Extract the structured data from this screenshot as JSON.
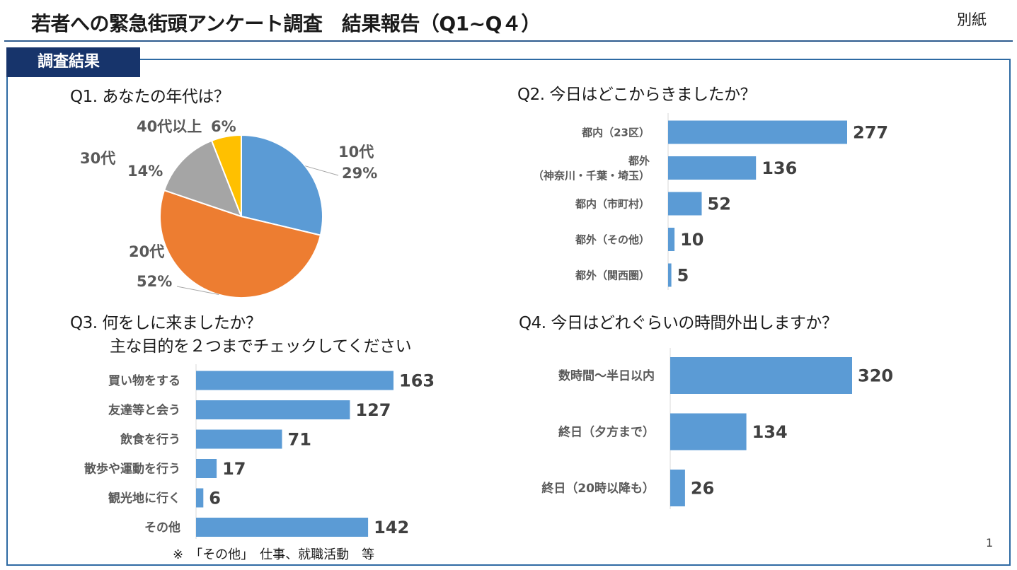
{
  "header": {
    "title": "若者への緊急街頭アンケート調査　結果報告（Q1~Q４）",
    "attachment_label": "別紙",
    "section_tag": "調査結果"
  },
  "footer": {
    "note": "※　「その他」　仕事、就職活動　等",
    "page_number": "1"
  },
  "colors": {
    "bar": "#5b9bd5",
    "pie_10s": "#5b9bd5",
    "pie_20s": "#ed7d31",
    "pie_30s": "#a5a5a5",
    "pie_40s": "#ffc000"
  },
  "chart_data": [
    {
      "id": "q1",
      "type": "pie",
      "title": "Q1. あなたの年代は？",
      "slices": [
        {
          "label": "10代",
          "value": 29,
          "value_label": "29%"
        },
        {
          "label": "20代",
          "value": 52,
          "value_label": "52%"
        },
        {
          "label": "30代",
          "value": 14,
          "value_label": "14%"
        },
        {
          "label": "40代以上",
          "value": 6,
          "value_label": "6%"
        }
      ]
    },
    {
      "id": "q2",
      "type": "bar",
      "orientation": "horizontal",
      "title": "Q2. 今日はどこからきましたか？",
      "categories": [
        "都内（23区）",
        "都外\n（神奈川・千葉・埼玉）",
        "都内（市町村）",
        "都外（その他）",
        "都外（関西圏）"
      ],
      "values": [
        277,
        136,
        52,
        10,
        5
      ]
    },
    {
      "id": "q3",
      "type": "bar",
      "orientation": "horizontal",
      "title_lines": [
        "Q3. 何をしに来ましたか？",
        "主な目的を２つまでチェックしてください"
      ],
      "categories": [
        "買い物をする",
        "友達等と会う",
        "飲食を行う",
        "散歩や運動を行う",
        "観光地に行く",
        "その他"
      ],
      "values": [
        163,
        127,
        71,
        17,
        6,
        142
      ]
    },
    {
      "id": "q4",
      "type": "bar",
      "orientation": "horizontal",
      "title": "Q4. 今日はどれぐらいの時間外出しますか？",
      "categories": [
        "数時間～半日以内",
        "終日（夕方まで）",
        "終日（20時以降も）"
      ],
      "values": [
        320,
        134,
        26
      ]
    }
  ]
}
